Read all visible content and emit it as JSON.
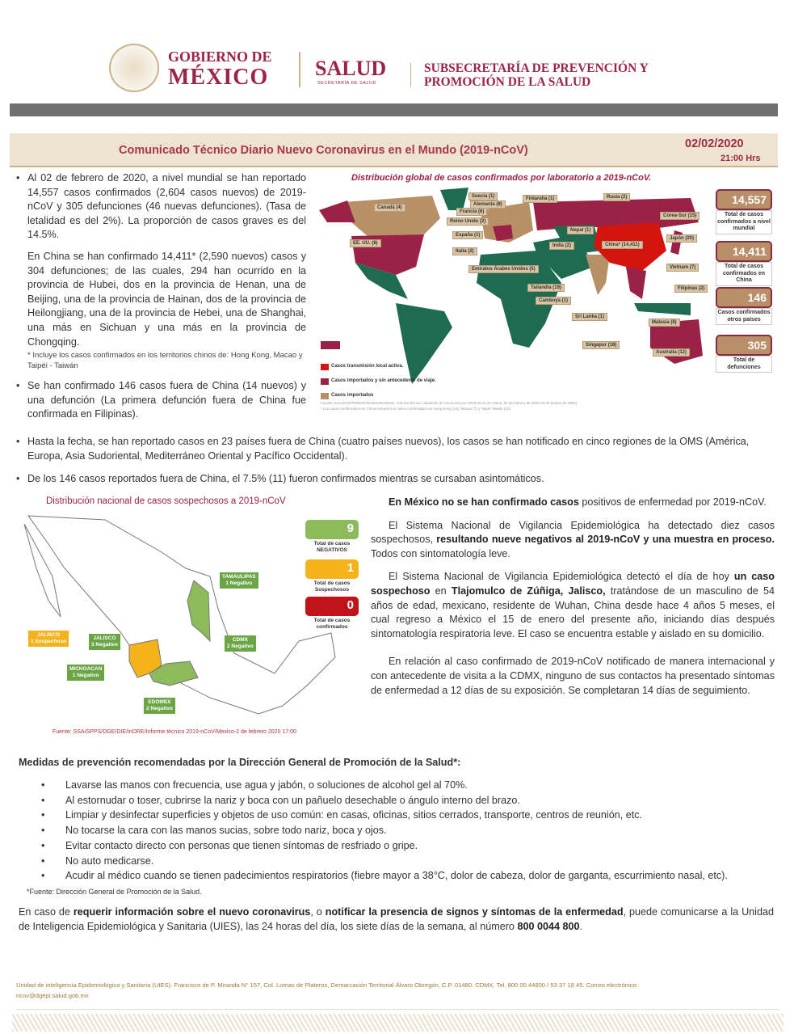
{
  "header": {
    "gov_line1": "GOBIERNO DE",
    "gov_line2": "MÉXICO",
    "salud": "SALUD",
    "salud_sub": "SECRETARÍA DE SALUD",
    "subsec_line1": "SUBSECRETARÍA DE PREVENCIÓN Y",
    "subsec_line2": "PROMOCIÓN DE LA SALUD",
    "emblem_text": "ESTADOS UNIDOS MEXICANOS"
  },
  "title": {
    "text": "Comunicado Técnico Diario Nuevo Coronavirus en el Mundo (2019-nCoV)",
    "date": "02/02/2020",
    "time": "21:00 Hrs"
  },
  "left": {
    "p1": "Al 02 de febrero de 2020, a nivel mundial se han reportado 14,557 casos confirmados (2,604 casos nuevos) de 2019-nCoV y 305 defunciones (46 nuevas defunciones). (Tasa de letalidad es del 2%). La proporción de casos graves es del 14.5%.",
    "p2": "En China se han confirmado 14,411* (2,590 nuevos) casos y 304 defunciones; de las cuales, 294 han ocurrido en la provincia de Hubei, dos en la provincia de Henan, una de Beijing, una de la provincia de Hainan, dos de la provincia de Heilongjiang, una de la provincia de Hebei, una de Shanghai, una más en Sichuan y una más en la provincia de Chongqing.",
    "note": "* Incluye los casos confirmados en los territorios chinos de: Hong Kong, Macao y Taipéi - Taiwán",
    "p3": "Se han confirmado 146 casos fuera de China (14 nuevos) y una defunción (La primera defunción fuera de China fue confirmada en Filipinas)."
  },
  "world_map": {
    "title": "Distribución global de casos confirmados por laboratorio a 2019-nCoV.",
    "labels": [
      "Suecia (1)",
      "Alemania (8)",
      "Finlandia (1)",
      "Rusia (2)",
      "Canadá (4)",
      "Francia (6)",
      "Reino Unido (2)",
      "España (1)",
      "Corea-Sur (15)",
      "EE. UU. (8)",
      "Nepal (1)",
      "India (2)",
      "China* (14,411)",
      "Japón (20)",
      "Italia (2)",
      "Emiratos Árabes Unidos (5)",
      "Vietnam (7)",
      "Tailandia (19)",
      "Filipinas (2)",
      "Camboya (1)",
      "Sri Lanka (1)",
      "Malasia (8)",
      "Singapur (18)",
      "Australia (12)"
    ],
    "legend": [
      "Casos transmisión local activa.",
      "Casos importados y sin antecedente de viaje.",
      "Casos importados"
    ],
    "colors": {
      "local": "#d4140f",
      "imported_no_travel": "#9b2247",
      "imported": "#b89067",
      "none": "#1f6b52"
    },
    "source": "Fuente: SALUD/SPPS/DGE/DIOE/UIES/IEMx. Informe técnico: Situación de neumonía por 2019-nCoV en China, 02 de febrero de 2020 10:00 (Datos de OMS).",
    "source_note": "* Los casos confirmados en China incluyen los casos confirmados en Hong Kong (14), Macao (7) y Taipéi-Taiwán (10)",
    "stats": [
      {
        "value": "14,557",
        "caption": "Total de casos confirmados a nivel mundial"
      },
      {
        "value": "14,411",
        "caption": "Total de casos confirmados en China"
      },
      {
        "value": "146",
        "caption": "Casos confirmados otros países"
      },
      {
        "value": "305",
        "caption": "Total de defunciones"
      }
    ]
  },
  "full": {
    "p4": "Hasta la fecha, se han reportado casos en 23 países fuera de China (cuatro países nuevos), los casos se han notificado en cinco regiones de la OMS (América, Europa, Asia Sudoriental, Mediterráneo Oriental y Pacífico Occidental).",
    "p5": "De los 146 casos reportados fuera de China, el 7.5%  (11) fueron confirmados mientras se cursaban asintomáticos."
  },
  "mexico_map": {
    "title": "Distribución nacional de casos sospechosos a 2019-nCoV",
    "labels": [
      {
        "state": "TAMAULIPAS",
        "status": "1 Negativo"
      },
      {
        "state": "JALISCO",
        "status": "3 Negativo"
      },
      {
        "state": "CDMX",
        "status": "2 Negativo"
      },
      {
        "state": "MICHOACAN",
        "status": "1 Negativo"
      },
      {
        "state": "EDOMEX",
        "status": "2 Negativo"
      },
      {
        "state": "JALISCO",
        "status": "1 Sospechoso"
      }
    ],
    "stats": [
      {
        "value": "9",
        "caption": "Total de casos NEGATIVOS",
        "color": "#8dbb5c"
      },
      {
        "value": "1",
        "caption": "Total de casos Sospechosos",
        "color": "#f4b21b"
      },
      {
        "value": "0",
        "caption": "Total de casos confirmados",
        "color": "#c0141a"
      }
    ],
    "source": "Fuente: SSA/SPPS/DGE/DIE/InDRE/Informe técnico 2019-nCoV/Mexico-2 de febrero 2020 17:00"
  },
  "right": {
    "b1_bold": "En México no se han confirmado casos",
    "b1_rest": " positivos de enfermedad por 2019-nCoV.",
    "b2_a": "El Sistema Nacional de Vigilancia Epidemiológica ha detectado diez casos sospechosos, ",
    "b2_bold": "resultando nueve negativos al 2019-nCoV y una muestra en proceso.",
    "b2_c": " Todos  con sintomatología leve.",
    "b3_a": "El Sistema Nacional de Vigilancia Epidemiológica detectó el día de hoy ",
    "b3_bold1": "un caso sospechoso",
    "b3_b": " en ",
    "b3_bold2": "Tlajomulco de Zúñiga, Jalisco,",
    "b3_c": " tratándose de un masculino de 54 años de edad, mexicano, residente de Wuhan, China desde hace 4 años 5 meses, el cual regreso a México el 15 de enero del presente año, iniciando días después sintomatología respiratoria leve. El caso se encuentra estable y aislado en su domicilio.",
    "b4": "En relación al caso confirmado de 2019-nCoV notificado de manera internacional y con antecedente de visita a la CDMX, ninguno de sus contactos ha presentado síntomas de enfermedad a 12 días de su exposición. Se completaran 14 días de seguimiento."
  },
  "prevention": {
    "heading": "Medidas de prevención recomendadas por la Dirección General de Promoción de la Salud*:",
    "items": [
      "Lavarse las manos con frecuencia, use agua y jabón, o soluciones de alcohol gel al 70%.",
      "Al estornudar o toser, cubrirse la nariz y boca con un pañuelo desechable o ángulo interno del brazo.",
      "Limpiar y desinfectar superficies y objetos de uso común: en casas, oficinas, sitios cerrados, transporte, centros de reunión, etc.",
      "No tocarse la cara con las manos sucias, sobre todo nariz, boca y ojos.",
      "Evitar contacto directo con personas que tienen síntomas de resfriado o gripe.",
      "No auto medicarse.",
      "Acudir al médico cuando se tienen padecimientos respiratorios (fiebre mayor a 38°C, dolor de cabeza, dolor de garganta, escurrimiento nasal, etc)."
    ],
    "source": "*Fuente: Dirección General de Promoción de la Salud."
  },
  "contact": {
    "a": "En caso de ",
    "b1": "requerir información sobre el nuevo coronavirus",
    "c": ", o ",
    "b2": "notificar la presencia de signos y síntomas de la enfermedad",
    "d": ", puede comunicarse a la Unidad de Inteligencia Epidemiológica y Sanitaria (UIES), las 24 horas del día, los siete días de la semana, al número ",
    "b3": "800 0044 800",
    "e": "."
  },
  "footer": {
    "address": "Unidad de inteligencia Epidemiológica y Sanitaria (UIES). Francisco de P. Miranda N° 157, Col. Lomas de Plateros, Demarcación Territorial Álvaro Obregón, C.P. 01480. CDMX. Tel. 800 00 44800 / 53 37 18 45. Correo electrónico:",
    "email": "ncov@dgepi.salud.gob.mx"
  }
}
